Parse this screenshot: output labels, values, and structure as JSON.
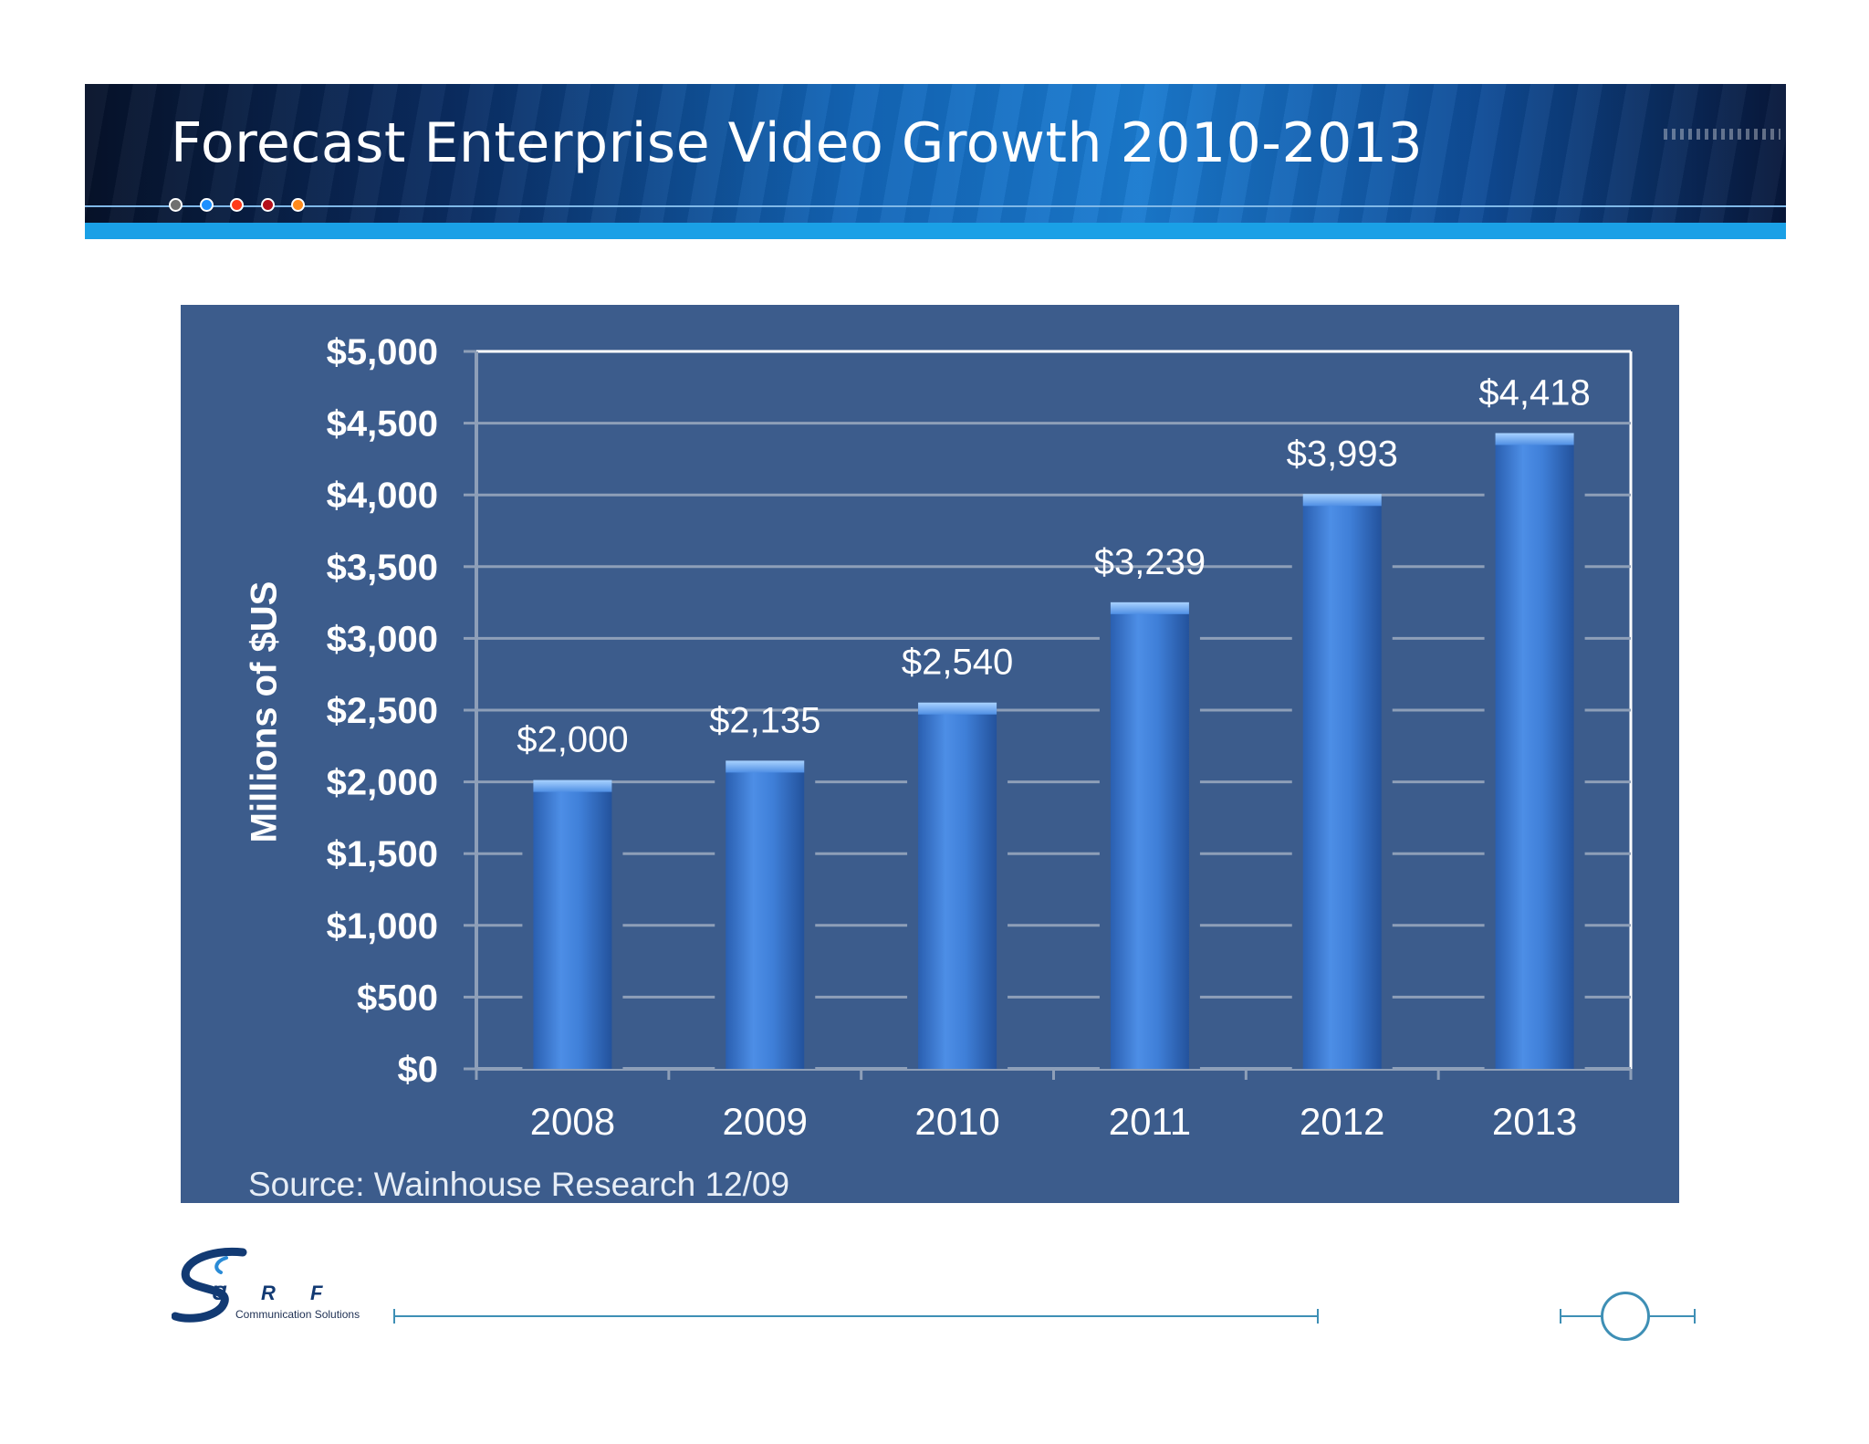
{
  "slide": {
    "title": "Forecast Enterprise Video Growth 2010-2013",
    "source": "Source: Wainhouse Research 12/09",
    "decor_dot_colors": [
      "#707070",
      "#1e90ff",
      "#ff3b1a",
      "#b5101a",
      "#ff8a1a"
    ]
  },
  "logo": {
    "name": "SURF",
    "letters": "U R F",
    "subtitle": "Communication Solutions"
  },
  "colors": {
    "panel": "#3c5c8c",
    "bar": "#3f7fd8",
    "gridline": "#8e9fb8",
    "text": "#ffffff"
  },
  "chart_data": {
    "type": "bar",
    "categories": [
      "2008",
      "2009",
      "2010",
      "2011",
      "2012",
      "2013"
    ],
    "values": [
      2000,
      2135,
      2540,
      3239,
      3993,
      4418
    ],
    "data_labels": [
      "$2,000",
      "$2,135",
      "$2,540",
      "$3,239",
      "$3,993",
      "$4,418"
    ],
    "title": "",
    "xlabel": "",
    "ylabel": "Millions of $US",
    "ylim": [
      0,
      5000
    ],
    "ytick_values": [
      0,
      500,
      1000,
      1500,
      2000,
      2500,
      3000,
      3500,
      4000,
      4500,
      5000
    ],
    "ytick_labels": [
      "$0",
      "$500",
      "$1,000",
      "$1,500",
      "$2,000",
      "$2,500",
      "$3,000",
      "$3,500",
      "$4,000",
      "$4,500",
      "$5,000"
    ],
    "grid": true,
    "legend": "none"
  }
}
